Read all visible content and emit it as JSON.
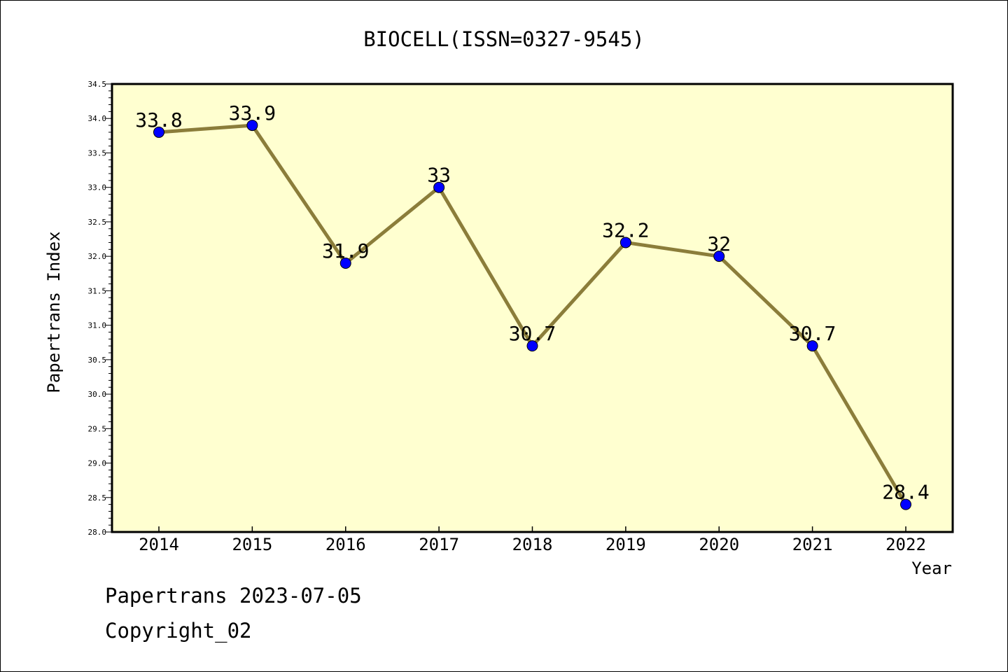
{
  "chart_data": {
    "type": "line",
    "title": "BIOCELL(ISSN=0327-9545)",
    "xlabel": "Year",
    "ylabel": "Papertrans Index",
    "categories": [
      "2014",
      "2015",
      "2016",
      "2017",
      "2018",
      "2019",
      "2020",
      "2021",
      "2022"
    ],
    "series": [
      {
        "values": [
          33.8,
          33.9,
          31.9,
          33,
          30.7,
          32.2,
          32,
          30.7,
          28.4
        ],
        "labels": [
          "33.8",
          "33.9",
          "31.9",
          "33",
          "30.7",
          "32.2",
          "32",
          "30.7",
          "28.4"
        ]
      }
    ],
    "ylim": [
      28.0,
      34.5
    ],
    "y_ticks": [
      "28.0",
      "28.5",
      "29.0",
      "29.5",
      "30.0",
      "30.5",
      "31.0",
      "31.5",
      "32.0",
      "32.5",
      "33.0",
      "33.5",
      "34.0",
      "34.5"
    ],
    "grid": false,
    "colors": {
      "plot_background": "#ffffd0",
      "line": "#8b7d3a",
      "marker": "#0000ff"
    }
  },
  "footer": {
    "line1": "Papertrans 2023-07-05",
    "line2": "Copyright_02"
  }
}
